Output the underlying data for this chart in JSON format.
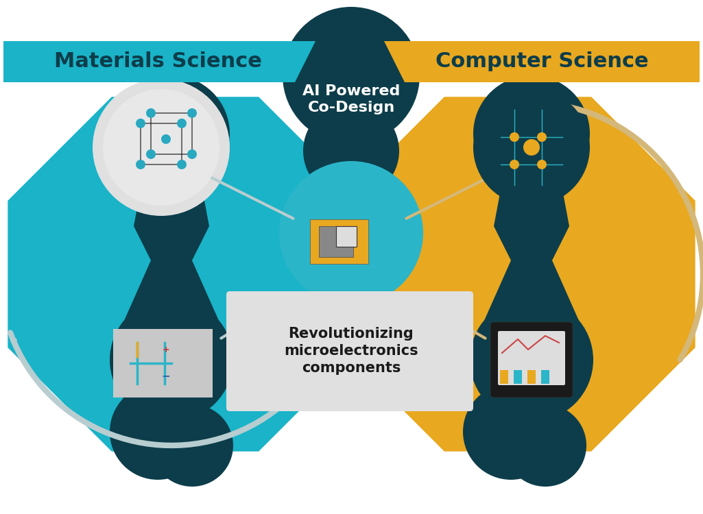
{
  "bg_color": "#ffffff",
  "teal_color": "#1ab3c8",
  "gold_color": "#e8a820",
  "dark_teal": "#0d3d4a",
  "light_gray": "#d8d8d8",
  "mid_gray": "#c0c0c0",
  "arrow_color": "#b8cdd0",
  "arrow_gold": "#d4b87a",
  "title_left": "Materials Science",
  "title_right": "Computer Science",
  "center_top": "AI Powered\nCo-Design",
  "center_bottom": "Revolutionizing\nmicroelectronics\ncomponents",
  "title_color": "#0d3d4a",
  "center_text_color": "#ffffff",
  "bottom_text_color": "#1a1a1a",
  "figsize": [
    10.25,
    7.5
  ],
  "dpi": 100
}
